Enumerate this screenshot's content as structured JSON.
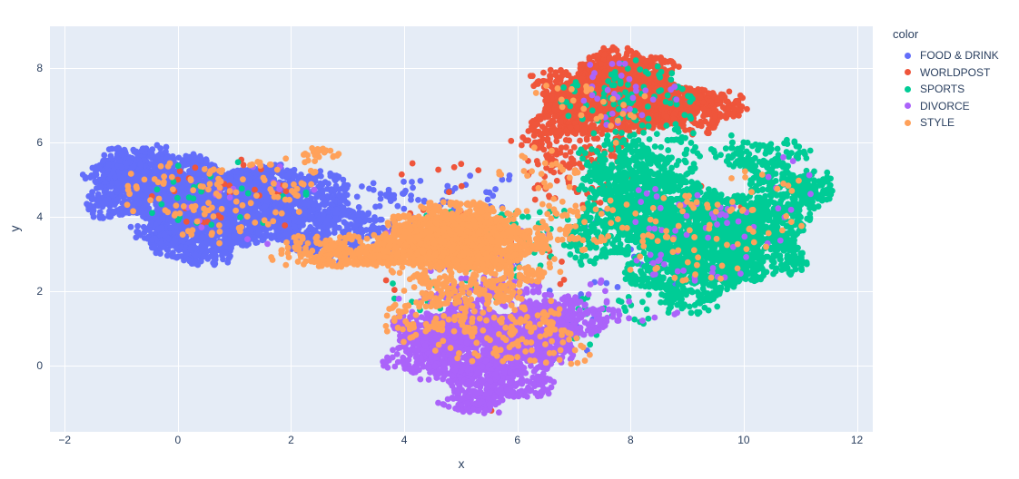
{
  "chart_data": {
    "type": "scatter",
    "title": "",
    "xlabel": "x",
    "ylabel": "y",
    "xlim": [
      -2.26,
      12.28
    ],
    "ylim": [
      -1.78,
      9.12
    ],
    "xticks": [
      -2,
      0,
      2,
      4,
      6,
      8,
      10,
      12
    ],
    "yticks": [
      0,
      2,
      4,
      6,
      8
    ],
    "grid": true,
    "plot_bgcolor": "#E5ECF6",
    "grid_color": "#FFFFFF",
    "tick_color": "#2a3f5f",
    "marker_radius": 3.4,
    "legend_title": "color",
    "legend_position": "top-right",
    "series": [
      {
        "name": "FOOD & DRINK",
        "color": "#636EFA",
        "blobs": [
          {
            "cx": -0.6,
            "cy": 4.75,
            "rx": 0.9,
            "ry": 0.95,
            "n": 650
          },
          {
            "cx": 0.35,
            "cy": 4.5,
            "rx": 1.05,
            "ry": 1.15,
            "n": 950
          },
          {
            "cx": 1.25,
            "cy": 4.35,
            "rx": 1.0,
            "ry": 1.0,
            "n": 800
          },
          {
            "cx": 2.1,
            "cy": 4.25,
            "rx": 0.95,
            "ry": 0.95,
            "n": 520
          },
          {
            "cx": 0.35,
            "cy": 3.35,
            "rx": 1.05,
            "ry": 0.55,
            "n": 380
          },
          {
            "cx": -1.0,
            "cy": 5.25,
            "rx": 0.6,
            "ry": 0.6,
            "n": 200
          },
          {
            "cx": 2.75,
            "cy": 3.55,
            "rx": 0.8,
            "ry": 0.7,
            "n": 230
          },
          {
            "cx": 3.45,
            "cy": 4.0,
            "rx": 0.85,
            "ry": 0.95,
            "n": 80
          },
          {
            "cx": 4.8,
            "cy": 4.7,
            "rx": 1.2,
            "ry": 0.55,
            "n": 35
          },
          {
            "cx": 8.6,
            "cy": 3.3,
            "rx": 1.6,
            "ry": 1.5,
            "n": 30
          },
          {
            "cx": 6.6,
            "cy": 1.2,
            "rx": 1.1,
            "ry": 1.0,
            "n": 14
          },
          {
            "cx": 7.9,
            "cy": 7.3,
            "rx": 1.1,
            "ry": 0.7,
            "n": 8
          },
          {
            "cx": 5.3,
            "cy": 2.9,
            "rx": 1.3,
            "ry": 0.9,
            "n": 20
          }
        ]
      },
      {
        "name": "WORLDPOST",
        "color": "#EF553B",
        "blobs": [
          {
            "cx": 7.55,
            "cy": 7.3,
            "rx": 1.0,
            "ry": 0.8,
            "n": 800
          },
          {
            "cx": 8.35,
            "cy": 7.1,
            "rx": 0.95,
            "ry": 0.75,
            "n": 650
          },
          {
            "cx": 7.95,
            "cy": 8.0,
            "rx": 0.8,
            "ry": 0.5,
            "n": 300
          },
          {
            "cx": 7.0,
            "cy": 6.75,
            "rx": 0.7,
            "ry": 0.6,
            "n": 260
          },
          {
            "cx": 9.2,
            "cy": 6.9,
            "rx": 0.8,
            "ry": 0.55,
            "n": 230
          },
          {
            "cx": 7.1,
            "cy": 5.95,
            "rx": 1.0,
            "ry": 0.55,
            "n": 130
          },
          {
            "cx": 6.7,
            "cy": 7.7,
            "rx": 0.5,
            "ry": 0.28,
            "n": 45
          },
          {
            "cx": 6.9,
            "cy": 4.95,
            "rx": 0.95,
            "ry": 0.75,
            "n": 60
          },
          {
            "cx": 0.7,
            "cy": 4.6,
            "rx": 1.6,
            "ry": 0.95,
            "n": 28
          },
          {
            "cx": 5.2,
            "cy": 2.9,
            "rx": 1.5,
            "ry": 1.3,
            "n": 26
          },
          {
            "cx": 9.2,
            "cy": 3.8,
            "rx": 1.4,
            "ry": 1.2,
            "n": 18
          },
          {
            "cx": 4.8,
            "cy": 5.2,
            "rx": 1.0,
            "ry": 0.6,
            "n": 8
          },
          {
            "cx": 5.55,
            "cy": -1.2,
            "rx": 0.12,
            "ry": 0.1,
            "n": 2
          }
        ]
      },
      {
        "name": "SPORTS",
        "color": "#00CC96",
        "blobs": [
          {
            "cx": 9.3,
            "cy": 3.6,
            "rx": 1.25,
            "ry": 1.05,
            "n": 850
          },
          {
            "cx": 10.2,
            "cy": 3.3,
            "rx": 1.0,
            "ry": 0.95,
            "n": 520
          },
          {
            "cx": 8.45,
            "cy": 4.35,
            "rx": 1.05,
            "ry": 0.85,
            "n": 480
          },
          {
            "cx": 9.0,
            "cy": 2.4,
            "rx": 1.05,
            "ry": 0.7,
            "n": 380
          },
          {
            "cx": 10.75,
            "cy": 4.65,
            "rx": 0.75,
            "ry": 0.7,
            "n": 220
          },
          {
            "cx": 7.65,
            "cy": 3.6,
            "rx": 0.8,
            "ry": 0.85,
            "n": 260
          },
          {
            "cx": 7.95,
            "cy": 5.3,
            "rx": 0.95,
            "ry": 0.7,
            "n": 260
          },
          {
            "cx": 10.35,
            "cy": 5.6,
            "rx": 0.85,
            "ry": 0.5,
            "n": 120
          },
          {
            "cx": 11.2,
            "cy": 4.9,
            "rx": 0.45,
            "ry": 0.4,
            "n": 50
          },
          {
            "cx": 8.05,
            "cy": 7.2,
            "rx": 1.2,
            "ry": 0.9,
            "n": 90
          },
          {
            "cx": 8.6,
            "cy": 5.95,
            "rx": 1.2,
            "ry": 0.5,
            "n": 60
          },
          {
            "cx": 5.9,
            "cy": 3.4,
            "rx": 1.4,
            "ry": 1.0,
            "n": 55
          },
          {
            "cx": 0.8,
            "cy": 4.6,
            "rx": 1.7,
            "ry": 1.0,
            "n": 26
          },
          {
            "cx": 8.3,
            "cy": 1.55,
            "rx": 1.3,
            "ry": 0.45,
            "n": 45
          },
          {
            "cx": 6.4,
            "cy": 0.9,
            "rx": 1.1,
            "ry": 0.9,
            "n": 22
          },
          {
            "cx": 4.9,
            "cy": 2.0,
            "rx": 1.2,
            "ry": 0.9,
            "n": 25
          }
        ]
      },
      {
        "name": "DIVORCE",
        "color": "#AB63FA",
        "blobs": [
          {
            "cx": 5.4,
            "cy": 0.55,
            "rx": 1.15,
            "ry": 0.9,
            "n": 900
          },
          {
            "cx": 6.2,
            "cy": 0.9,
            "rx": 0.95,
            "ry": 0.75,
            "n": 520
          },
          {
            "cx": 4.7,
            "cy": 0.9,
            "rx": 0.85,
            "ry": 0.65,
            "n": 360
          },
          {
            "cx": 5.6,
            "cy": -0.5,
            "rx": 0.95,
            "ry": 0.55,
            "n": 280
          },
          {
            "cx": 5.25,
            "cy": -1.0,
            "rx": 0.5,
            "ry": 0.3,
            "n": 70
          },
          {
            "cx": 7.0,
            "cy": 1.25,
            "rx": 0.7,
            "ry": 0.55,
            "n": 170
          },
          {
            "cx": 4.25,
            "cy": 0.2,
            "rx": 0.55,
            "ry": 0.5,
            "n": 110
          },
          {
            "cx": 5.5,
            "cy": 1.9,
            "rx": 1.3,
            "ry": 0.45,
            "n": 130
          },
          {
            "cx": 9.3,
            "cy": 3.6,
            "rx": 1.5,
            "ry": 1.3,
            "n": 60
          },
          {
            "cx": 7.9,
            "cy": 7.3,
            "rx": 1.0,
            "ry": 0.85,
            "n": 30
          },
          {
            "cx": 5.0,
            "cy": 3.3,
            "rx": 1.4,
            "ry": 0.9,
            "n": 40
          },
          {
            "cx": 0.9,
            "cy": 4.4,
            "rx": 1.6,
            "ry": 1.0,
            "n": 15
          },
          {
            "cx": 7.9,
            "cy": 1.8,
            "rx": 1.0,
            "ry": 0.8,
            "n": 18
          },
          {
            "cx": 10.9,
            "cy": 5.0,
            "rx": 0.9,
            "ry": 0.6,
            "n": 6
          }
        ]
      },
      {
        "name": "STYLE",
        "color": "#FFA15A",
        "blobs": [
          {
            "cx": 4.85,
            "cy": 3.45,
            "rx": 1.05,
            "ry": 0.65,
            "n": 750
          },
          {
            "cx": 5.55,
            "cy": 3.25,
            "rx": 0.85,
            "ry": 0.6,
            "n": 420
          },
          {
            "cx": 4.2,
            "cy": 3.15,
            "rx": 0.9,
            "ry": 0.55,
            "n": 320
          },
          {
            "cx": 5.1,
            "cy": 4.0,
            "rx": 0.75,
            "ry": 0.45,
            "n": 220
          },
          {
            "cx": 3.3,
            "cy": 3.05,
            "rx": 0.9,
            "ry": 0.45,
            "n": 170
          },
          {
            "cx": 2.4,
            "cy": 3.05,
            "rx": 0.8,
            "ry": 0.4,
            "n": 90
          },
          {
            "cx": 5.2,
            "cy": 2.3,
            "rx": 1.25,
            "ry": 0.6,
            "n": 220
          },
          {
            "cx": 5.7,
            "cy": 0.95,
            "rx": 1.45,
            "ry": 1.0,
            "n": 170
          },
          {
            "cx": 0.7,
            "cy": 4.5,
            "rx": 1.75,
            "ry": 1.1,
            "n": 120
          },
          {
            "cx": 2.45,
            "cy": 5.7,
            "rx": 0.3,
            "ry": 0.22,
            "n": 25
          },
          {
            "cx": 9.2,
            "cy": 3.5,
            "rx": 1.6,
            "ry": 1.2,
            "n": 75
          },
          {
            "cx": 6.9,
            "cy": 3.7,
            "rx": 0.85,
            "ry": 0.85,
            "n": 70
          },
          {
            "cx": 7.5,
            "cy": 6.9,
            "rx": 1.0,
            "ry": 0.9,
            "n": 25
          },
          {
            "cx": 10.4,
            "cy": 4.95,
            "rx": 0.7,
            "ry": 0.4,
            "n": 10
          },
          {
            "cx": 6.4,
            "cy": 5.2,
            "rx": 0.8,
            "ry": 0.6,
            "n": 25
          },
          {
            "cx": 4.4,
            "cy": 1.35,
            "rx": 0.9,
            "ry": 0.6,
            "n": 60
          }
        ]
      }
    ]
  }
}
